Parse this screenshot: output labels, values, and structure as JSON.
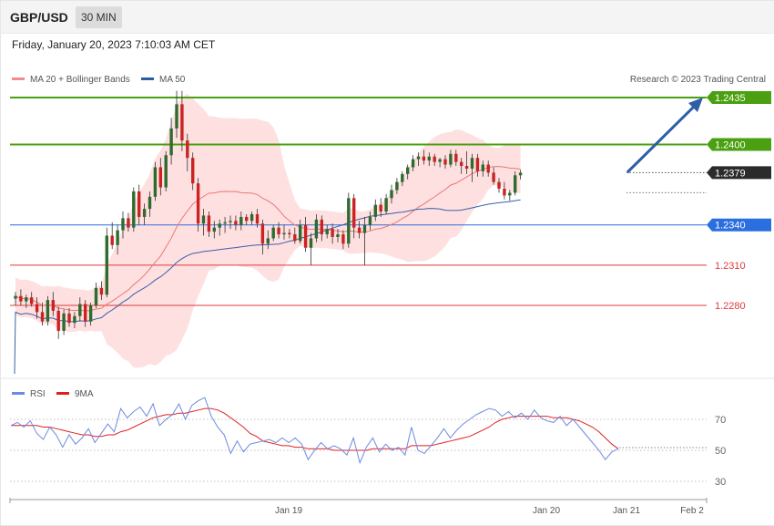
{
  "header": {
    "symbol": "GBP/USD",
    "timeframe": "30 MIN",
    "datetime": "Friday, January 20, 2023 7:10:03 AM CET"
  },
  "legend": {
    "ma20": "MA 20 + Bollinger Bands",
    "ma50": "MA 50",
    "credit": "Research © 2023 Trading Central"
  },
  "colors": {
    "bull": "#2e6b2e",
    "bear": "#cc2222",
    "ma20": "#e87878",
    "ma50": "#3a5fa8",
    "band": "#fdd5d5",
    "resistance": "#4aa010",
    "support_key": "#2a6ee0",
    "support": "#e03a3a",
    "arrow": "#2d5ea8",
    "rsi": "#6c8ae0",
    "rsi_ma": "#e02020"
  },
  "chart_data": [
    {
      "type": "candlestick",
      "title": "GBP/USD 30 MIN",
      "x_labels": [
        "Jan 19",
        "Jan 20",
        "Jan 21",
        "Feb 2"
      ],
      "ylim": [
        1.22,
        1.245
      ],
      "levels": [
        {
          "value": "1.2435",
          "kind": "resistance"
        },
        {
          "value": "1.2400",
          "kind": "resistance"
        },
        {
          "value": "1.2379",
          "kind": "last"
        },
        {
          "value": "1.2340",
          "kind": "support_key"
        },
        {
          "value": "1.2310",
          "kind": "support"
        },
        {
          "value": "1.2280",
          "kind": "support"
        }
      ],
      "candles_ohlc": [
        [
          1.2285,
          1.229,
          1.228,
          1.2287
        ],
        [
          1.2287,
          1.2292,
          1.228,
          1.2283
        ],
        [
          1.2283,
          1.2288,
          1.2278,
          1.2286
        ],
        [
          1.2286,
          1.229,
          1.2279,
          1.2281
        ],
        [
          1.2281,
          1.2286,
          1.227,
          1.2275
        ],
        [
          1.2275,
          1.2282,
          1.2265,
          1.2268
        ],
        [
          1.2268,
          1.2287,
          1.2265,
          1.2284
        ],
        [
          1.2284,
          1.229,
          1.2272,
          1.2276
        ],
        [
          1.2276,
          1.2279,
          1.2255,
          1.2261
        ],
        [
          1.2261,
          1.2277,
          1.2258,
          1.2274
        ],
        [
          1.2274,
          1.2278,
          1.2264,
          1.2267
        ],
        [
          1.2267,
          1.2275,
          1.2263,
          1.2272
        ],
        [
          1.2272,
          1.2286,
          1.2268,
          1.2281
        ],
        [
          1.2281,
          1.2284,
          1.2264,
          1.2268
        ],
        [
          1.2268,
          1.2282,
          1.2265,
          1.228
        ],
        [
          1.228,
          1.2297,
          1.2278,
          1.2293
        ],
        [
          1.2293,
          1.2298,
          1.2284,
          1.2288
        ],
        [
          1.2288,
          1.2338,
          1.2286,
          1.2332
        ],
        [
          1.2332,
          1.2342,
          1.2322,
          1.2325
        ],
        [
          1.2325,
          1.234,
          1.2318,
          1.2336
        ],
        [
          1.2336,
          1.235,
          1.233,
          1.2345
        ],
        [
          1.2345,
          1.2349,
          1.2335,
          1.2338
        ],
        [
          1.2338,
          1.2368,
          1.2335,
          1.2365
        ],
        [
          1.2365,
          1.237,
          1.234,
          1.2346
        ],
        [
          1.2346,
          1.2356,
          1.234,
          1.2352
        ],
        [
          1.2352,
          1.2365,
          1.2346,
          1.2361
        ],
        [
          1.2361,
          1.2387,
          1.2358,
          1.2383
        ],
        [
          1.2383,
          1.239,
          1.2362,
          1.2368
        ],
        [
          1.2368,
          1.2395,
          1.2365,
          1.2392
        ],
        [
          1.2392,
          1.242,
          1.2385,
          1.2412
        ],
        [
          1.2412,
          1.244,
          1.2405,
          1.243
        ],
        [
          1.243,
          1.244,
          1.2395,
          1.2403
        ],
        [
          1.2403,
          1.2408,
          1.238,
          1.239
        ],
        [
          1.239,
          1.2394,
          1.2366,
          1.2371
        ],
        [
          1.2371,
          1.2375,
          1.2335,
          1.2341
        ],
        [
          1.2341,
          1.2352,
          1.2332,
          1.2347
        ],
        [
          1.2347,
          1.235,
          1.2331,
          1.2335
        ],
        [
          1.2335,
          1.2343,
          1.233,
          1.2338
        ],
        [
          1.2338,
          1.2344,
          1.2332,
          1.2341
        ],
        [
          1.2341,
          1.2346,
          1.2334,
          1.2342
        ],
        [
          1.2342,
          1.2347,
          1.2337,
          1.2343
        ],
        [
          1.2343,
          1.2347,
          1.2336,
          1.234
        ],
        [
          1.234,
          1.235,
          1.2336,
          1.2346
        ],
        [
          1.2346,
          1.2348,
          1.234,
          1.2343
        ],
        [
          1.2343,
          1.235,
          1.234,
          1.2348
        ],
        [
          1.2348,
          1.2352,
          1.2338,
          1.2341
        ],
        [
          1.2341,
          1.2344,
          1.2318,
          1.2326
        ],
        [
          1.2326,
          1.2336,
          1.2322,
          1.233
        ],
        [
          1.233,
          1.234,
          1.2328,
          1.2338
        ],
        [
          1.2338,
          1.2342,
          1.233,
          1.2333
        ],
        [
          1.2333,
          1.234,
          1.2329,
          1.2334
        ],
        [
          1.2334,
          1.2337,
          1.233,
          1.2333
        ],
        [
          1.2333,
          1.2338,
          1.2326,
          1.2328
        ],
        [
          1.2328,
          1.2344,
          1.2326,
          1.234
        ],
        [
          1.234,
          1.2346,
          1.232,
          1.2323
        ],
        [
          1.2323,
          1.2334,
          1.231,
          1.233
        ],
        [
          1.233,
          1.2348,
          1.2327,
          1.2344
        ],
        [
          1.2344,
          1.2347,
          1.2328,
          1.2333
        ],
        [
          1.2333,
          1.234,
          1.233,
          1.2337
        ],
        [
          1.2337,
          1.2341,
          1.2326,
          1.2331
        ],
        [
          1.2331,
          1.2337,
          1.2327,
          1.2333
        ],
        [
          1.2333,
          1.2336,
          1.2322,
          1.2326
        ],
        [
          1.2326,
          1.2364,
          1.2323,
          1.236
        ],
        [
          1.236,
          1.2363,
          1.233,
          1.2338
        ],
        [
          1.2338,
          1.2343,
          1.233,
          1.2334
        ],
        [
          1.2334,
          1.2346,
          1.231,
          1.234
        ],
        [
          1.234,
          1.235,
          1.2336,
          1.2346
        ],
        [
          1.2346,
          1.2359,
          1.2343,
          1.2355
        ],
        [
          1.2355,
          1.236,
          1.2346,
          1.235
        ],
        [
          1.235,
          1.2363,
          1.2348,
          1.236
        ],
        [
          1.236,
          1.237,
          1.2356,
          1.2366
        ],
        [
          1.2366,
          1.2375,
          1.2363,
          1.2372
        ],
        [
          1.2372,
          1.238,
          1.2369,
          1.2378
        ],
        [
          1.2378,
          1.2385,
          1.2374,
          1.2383
        ],
        [
          1.2383,
          1.2392,
          1.238,
          1.2389
        ],
        [
          1.2389,
          1.2394,
          1.2384,
          1.2391
        ],
        [
          1.2391,
          1.2396,
          1.2385,
          1.2388
        ],
        [
          1.2388,
          1.2394,
          1.2384,
          1.2391
        ],
        [
          1.2391,
          1.2393,
          1.2384,
          1.2387
        ],
        [
          1.2387,
          1.239,
          1.2383,
          1.2389
        ],
        [
          1.2389,
          1.2392,
          1.2382,
          1.2385
        ],
        [
          1.2385,
          1.2396,
          1.2383,
          1.2393
        ],
        [
          1.2393,
          1.2396,
          1.2384,
          1.2387
        ],
        [
          1.2387,
          1.239,
          1.2378,
          1.2384
        ],
        [
          1.2384,
          1.2395,
          1.2378,
          1.2382
        ],
        [
          1.2382,
          1.2393,
          1.2372,
          1.239
        ],
        [
          1.239,
          1.2393,
          1.2376,
          1.238
        ],
        [
          1.238,
          1.2388,
          1.2376,
          1.2385
        ],
        [
          1.2385,
          1.2388,
          1.2376,
          1.2379
        ],
        [
          1.2379,
          1.2383,
          1.237,
          1.2372
        ],
        [
          1.2372,
          1.2375,
          1.2364,
          1.2367
        ],
        [
          1.2367,
          1.2372,
          1.2359,
          1.2362
        ],
        [
          1.2362,
          1.2366,
          1.2358,
          1.2364
        ],
        [
          1.2364,
          1.238,
          1.2362,
          1.2377
        ],
        [
          1.2377,
          1.2381,
          1.2374,
          1.2379
        ]
      ]
    },
    {
      "type": "line",
      "title": "RSI",
      "series": [
        {
          "name": "RSI"
        },
        {
          "name": "9MA"
        }
      ],
      "ylim": [
        20,
        80
      ],
      "yticks": [
        "70",
        "50",
        "30"
      ],
      "rsi": [
        66,
        68,
        65,
        69,
        61,
        57,
        65,
        60,
        52,
        60,
        54,
        58,
        64,
        55,
        61,
        67,
        62,
        77,
        71,
        75,
        78,
        72,
        80,
        66,
        70,
        73,
        80,
        70,
        79,
        82,
        84,
        72,
        65,
        60,
        48,
        56,
        49,
        54,
        55,
        56,
        57,
        55,
        58,
        55,
        58,
        54,
        44,
        50,
        55,
        51,
        53,
        51,
        47,
        58,
        42,
        52,
        58,
        49,
        54,
        50,
        52,
        47,
        65,
        50,
        48,
        53,
        58,
        64,
        58,
        63,
        67,
        70,
        73,
        75,
        77,
        76,
        72,
        75,
        71,
        74,
        70,
        76,
        71,
        69,
        68,
        72,
        66,
        70,
        65,
        60,
        55,
        50,
        44,
        49,
        51
      ],
      "ma": [
        66,
        66,
        66,
        66,
        66,
        65,
        65,
        64,
        63,
        62,
        61,
        60,
        60,
        59,
        59,
        60,
        60,
        62,
        63,
        65,
        67,
        69,
        71,
        72,
        73,
        73,
        74,
        74,
        75,
        76,
        77,
        77,
        76,
        74,
        71,
        68,
        65,
        61,
        59,
        56,
        55,
        54,
        53,
        53,
        52,
        52,
        51,
        51,
        51,
        51,
        50,
        50,
        50,
        50,
        50,
        50,
        51,
        51,
        51,
        51,
        51,
        51,
        53,
        53,
        53,
        53,
        54,
        55,
        56,
        57,
        58,
        59,
        61,
        63,
        65,
        68,
        70,
        71,
        72,
        72,
        72,
        72,
        72,
        72,
        71,
        71,
        71,
        70,
        69,
        67,
        65,
        62,
        58,
        54,
        51
      ]
    }
  ],
  "pane": {
    "rsi_legend": "RSI",
    "ma_legend": "9MA"
  }
}
